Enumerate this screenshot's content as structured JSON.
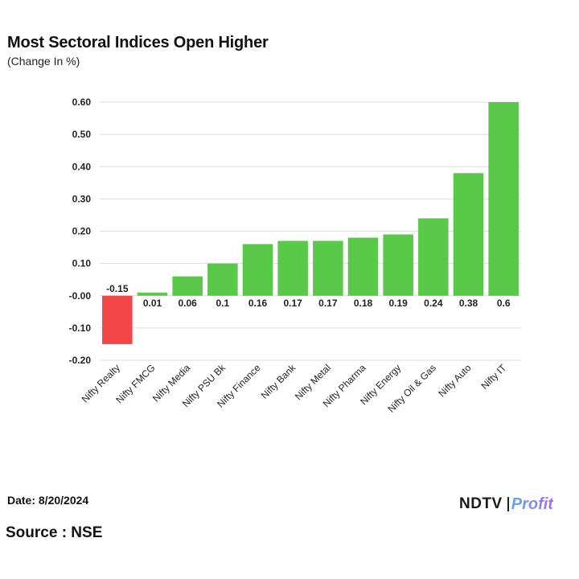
{
  "header": {
    "title": "Most Sectoral Indices Open Higher",
    "subtitle": "(Change In %)"
  },
  "footer": {
    "date": "Date: 8/20/2024",
    "source": "Source : NSE",
    "logo_ndtv": "NDTV",
    "logo_profit": "Profit"
  },
  "colors": {
    "positive": "#5ac94a",
    "negative": "#f24649",
    "grid": "#dddddd"
  },
  "chart_data": {
    "type": "bar",
    "title": "Most Sectoral Indices Open Higher",
    "subtitle": "(Change In %)",
    "categories": [
      "Nifty Realty",
      "Nifty FMCG",
      "Nifty Media",
      "Nifty PSU Bk",
      "Nifty Finance",
      "Nifty Bank",
      "Nifty Metal",
      "Nifty Pharma",
      "Nifty Energy",
      "Nifty Oil & Gas",
      "Nifty Auto",
      "Nifty IT"
    ],
    "values": [
      -0.15,
      0.01,
      0.06,
      0.1,
      0.16,
      0.17,
      0.17,
      0.18,
      0.19,
      0.24,
      0.38,
      0.6
    ],
    "data_labels": [
      "-0.15",
      "0.01",
      "0.06",
      "0.1",
      "0.16",
      "0.17",
      "0.17",
      "0.18",
      "0.19",
      "0.24",
      "0.38",
      "0.6"
    ],
    "ylim": [
      -0.2,
      0.6
    ],
    "yticks": [
      0.6,
      0.5,
      0.4,
      0.3,
      0.2,
      0.1,
      0.0,
      -0.1,
      -0.2
    ],
    "ytick_labels": [
      "0.60",
      "0.50",
      "0.40",
      "0.30",
      "0.20",
      "0.10",
      "-0.00",
      "-0.10",
      "-0.20"
    ],
    "grid": true,
    "legend": "none"
  }
}
